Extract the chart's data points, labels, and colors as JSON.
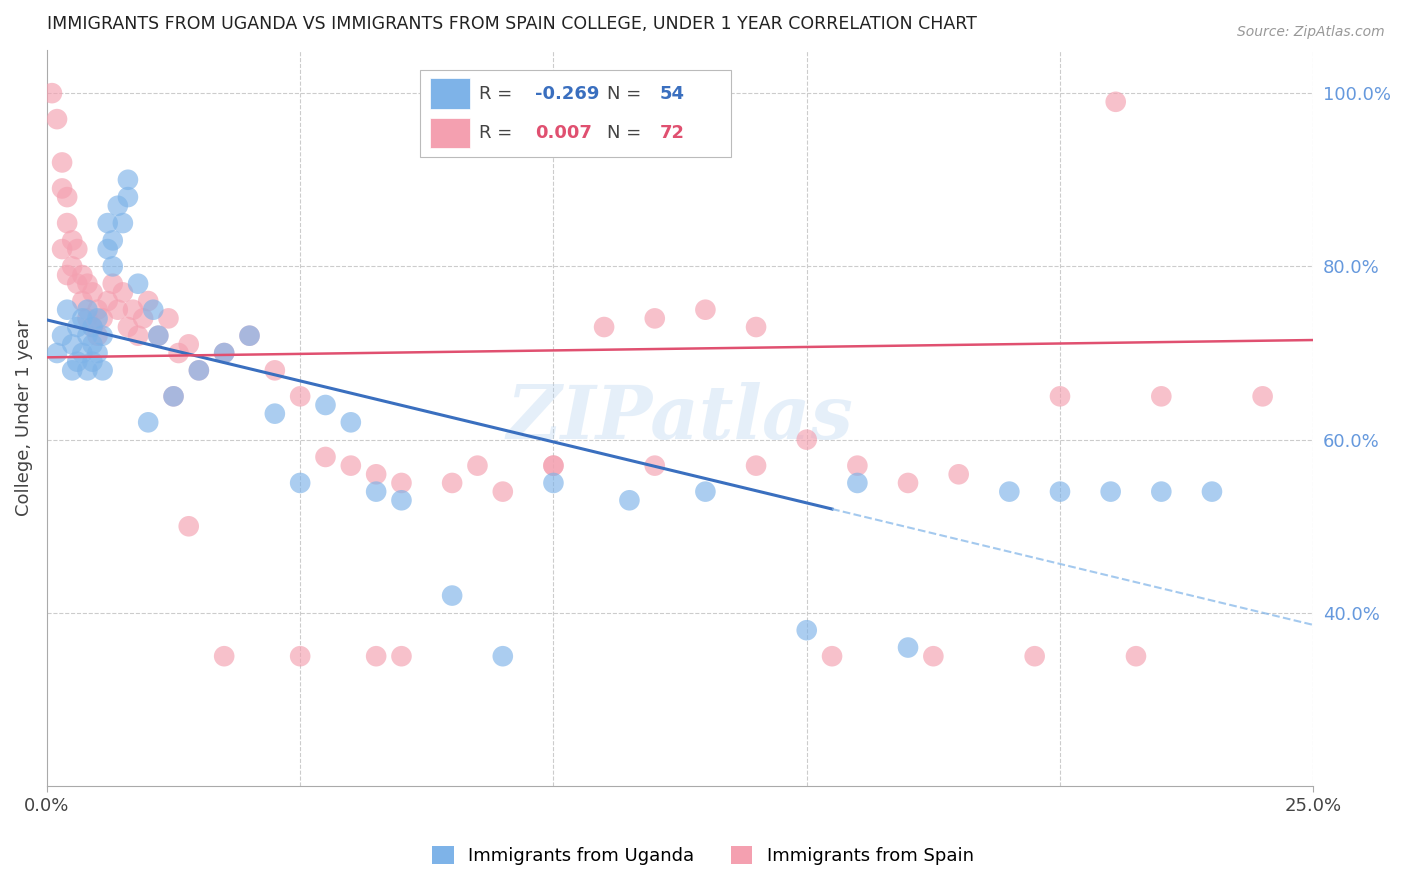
{
  "title": "IMMIGRANTS FROM UGANDA VS IMMIGRANTS FROM SPAIN COLLEGE, UNDER 1 YEAR CORRELATION CHART",
  "source": "Source: ZipAtlas.com",
  "ylabel": "College, Under 1 year",
  "legend_uganda": "Immigrants from Uganda",
  "legend_spain": "Immigrants from Spain",
  "R_uganda": -0.269,
  "N_uganda": 54,
  "R_spain": 0.007,
  "N_spain": 72,
  "color_uganda": "#7EB3E8",
  "color_spain": "#F4A0B0",
  "color_uganda_line": "#3A6FBF",
  "color_spain_line": "#E05070",
  "color_right_axis": "#6699DD",
  "xlim": [
    0.0,
    0.25
  ],
  "ylim": [
    0.2,
    1.05
  ],
  "uganda_x": [
    0.002,
    0.003,
    0.004,
    0.005,
    0.005,
    0.006,
    0.006,
    0.007,
    0.007,
    0.008,
    0.008,
    0.008,
    0.009,
    0.009,
    0.009,
    0.01,
    0.01,
    0.011,
    0.011,
    0.012,
    0.012,
    0.013,
    0.013,
    0.014,
    0.015,
    0.016,
    0.016,
    0.018,
    0.02,
    0.021,
    0.022,
    0.025,
    0.03,
    0.035,
    0.04,
    0.045,
    0.05,
    0.055,
    0.06,
    0.065,
    0.07,
    0.08,
    0.09,
    0.1,
    0.115,
    0.13,
    0.15,
    0.16,
    0.17,
    0.19,
    0.2,
    0.21,
    0.22,
    0.23
  ],
  "uganda_y": [
    0.7,
    0.72,
    0.75,
    0.68,
    0.71,
    0.73,
    0.69,
    0.74,
    0.7,
    0.72,
    0.68,
    0.75,
    0.73,
    0.71,
    0.69,
    0.74,
    0.7,
    0.72,
    0.68,
    0.85,
    0.82,
    0.83,
    0.8,
    0.87,
    0.85,
    0.9,
    0.88,
    0.78,
    0.62,
    0.75,
    0.72,
    0.65,
    0.68,
    0.7,
    0.72,
    0.63,
    0.55,
    0.64,
    0.62,
    0.54,
    0.53,
    0.42,
    0.35,
    0.55,
    0.53,
    0.54,
    0.38,
    0.55,
    0.36,
    0.54,
    0.54,
    0.54,
    0.54,
    0.54
  ],
  "spain_x": [
    0.001,
    0.002,
    0.003,
    0.003,
    0.004,
    0.004,
    0.005,
    0.005,
    0.006,
    0.006,
    0.007,
    0.007,
    0.008,
    0.008,
    0.009,
    0.009,
    0.01,
    0.01,
    0.011,
    0.012,
    0.013,
    0.014,
    0.015,
    0.016,
    0.017,
    0.018,
    0.019,
    0.02,
    0.022,
    0.024,
    0.026,
    0.028,
    0.03,
    0.035,
    0.04,
    0.045,
    0.05,
    0.055,
    0.06,
    0.065,
    0.07,
    0.08,
    0.09,
    0.1,
    0.11,
    0.12,
    0.13,
    0.14,
    0.15,
    0.16,
    0.17,
    0.18,
    0.2,
    0.22,
    0.24,
    0.003,
    0.004,
    0.025,
    0.028,
    0.035,
    0.05,
    0.065,
    0.07,
    0.085,
    0.1,
    0.12,
    0.14,
    0.155,
    0.175,
    0.195,
    0.211,
    0.215
  ],
  "spain_y": [
    1.0,
    0.97,
    0.92,
    0.89,
    0.85,
    0.88,
    0.83,
    0.8,
    0.78,
    0.82,
    0.79,
    0.76,
    0.78,
    0.74,
    0.77,
    0.73,
    0.75,
    0.72,
    0.74,
    0.76,
    0.78,
    0.75,
    0.77,
    0.73,
    0.75,
    0.72,
    0.74,
    0.76,
    0.72,
    0.74,
    0.7,
    0.71,
    0.68,
    0.7,
    0.72,
    0.68,
    0.65,
    0.58,
    0.57,
    0.56,
    0.55,
    0.55,
    0.54,
    0.57,
    0.73,
    0.74,
    0.75,
    0.73,
    0.6,
    0.57,
    0.55,
    0.56,
    0.65,
    0.65,
    0.65,
    0.82,
    0.79,
    0.65,
    0.5,
    0.35,
    0.35,
    0.35,
    0.35,
    0.57,
    0.57,
    0.57,
    0.57,
    0.35,
    0.35,
    0.35,
    0.99,
    0.35
  ],
  "watermark": "ZIPatlas",
  "grid_yticks": [
    0.4,
    0.6,
    0.8,
    1.0
  ],
  "grid_xticks": [
    0.05,
    0.1,
    0.15,
    0.2,
    0.25
  ]
}
